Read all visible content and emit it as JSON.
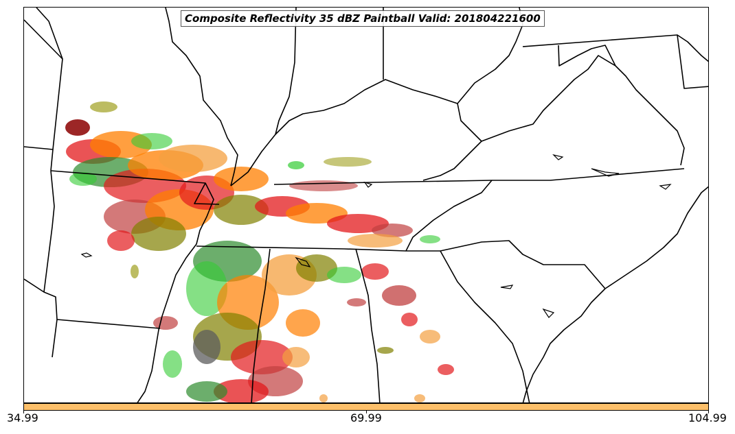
{
  "title": "Composite Reflectivity 35 dBZ Paintball Valid: 201804221600",
  "colorbar": {
    "color": "#fdc06a",
    "ticks": [
      "34.99",
      "69.99",
      "104.99"
    ]
  },
  "chart_data": {
    "type": "paintball-map",
    "threshold_dbz": 35,
    "valid_time": "201804221600",
    "colorbar_range": [
      34.99,
      104.99
    ],
    "member_colors": [
      "#e31a1c",
      "#ff7f00",
      "#33cc33",
      "#8b0000",
      "#a0a020",
      "#5c5c5c",
      "#2e8b2e",
      "#f4a040",
      "#c04040",
      "#808000"
    ]
  }
}
